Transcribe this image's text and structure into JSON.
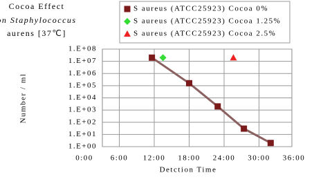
{
  "chart_data": {
    "type": "scatter",
    "title": [
      "Cocoa Effect",
      "on Staphylococcus",
      "aurens [37℃]"
    ],
    "xlabel": "Detction Time",
    "ylabel": "Number / ml",
    "log_y": true,
    "grid": true,
    "xlim": [
      0,
      36
    ],
    "xticks": [
      {
        "value": 0,
        "label": "0:00"
      },
      {
        "value": 6,
        "label": "6:00"
      },
      {
        "value": 12,
        "label": "12:00"
      },
      {
        "value": 18,
        "label": "18:00"
      },
      {
        "value": 24,
        "label": "24:00"
      },
      {
        "value": 30,
        "label": "30:00"
      },
      {
        "value": 36,
        "label": "36:00"
      }
    ],
    "ylim": [
      1,
      100000000
    ],
    "yticks": [
      {
        "value": 1,
        "label": "1.E+00"
      },
      {
        "value": 10,
        "label": "1.E+01"
      },
      {
        "value": 100,
        "label": "1.E+02"
      },
      {
        "value": 1000,
        "label": "1.E+03"
      },
      {
        "value": 10000,
        "label": "1.E+04"
      },
      {
        "value": 100000,
        "label": "1.E+05"
      },
      {
        "value": 1000000,
        "label": "1.E+06"
      },
      {
        "value": 10000000,
        "label": "1.E+07"
      },
      {
        "value": 100000000,
        "label": "1.E+08"
      }
    ],
    "series": [
      {
        "name": "S aureus (ATCC25923) Cocoa 0%",
        "color": "#7b1a1a",
        "marker": "square",
        "x": [
          11.6,
          18,
          22.9,
          27.4,
          32
        ],
        "values": [
          20000000,
          160000,
          2000,
          30,
          2
        ]
      },
      {
        "name": "S aureus (ATCC25923) Cocoa 1.25%",
        "color": "#33dd33",
        "marker": "diamond",
        "x": [
          13.5
        ],
        "values": [
          20000000
        ]
      },
      {
        "name": "S aureus (ATCC25923) Cocoa 2.5%",
        "color": "#ee2222",
        "marker": "triangle",
        "x": [
          25.6
        ],
        "values": [
          20000000
        ]
      }
    ]
  }
}
